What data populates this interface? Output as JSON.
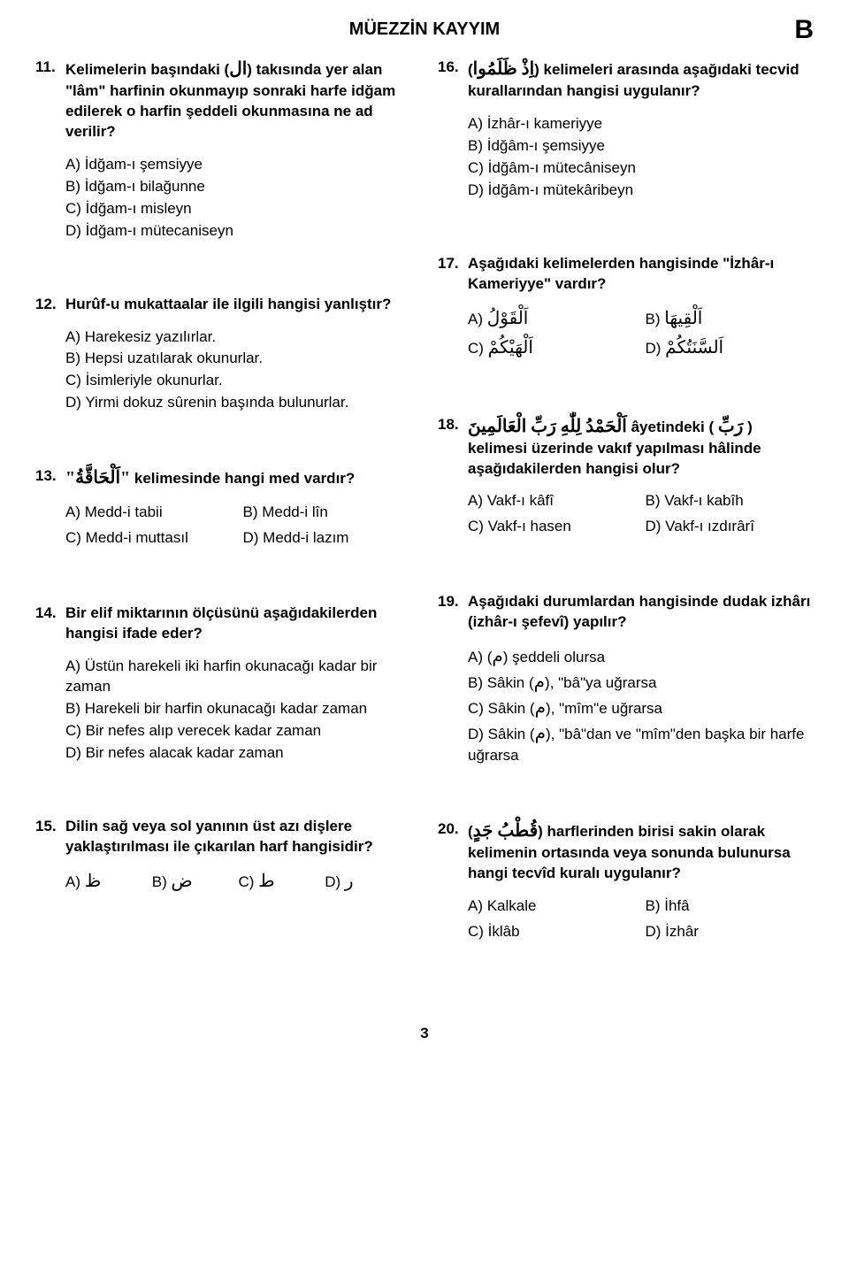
{
  "page": {
    "title": "MÜEZZİN KAYYIM",
    "booklet": "B",
    "page_number": "3"
  },
  "q11": {
    "num": "11.",
    "pre": "Kelimelerin başındaki (",
    "ar": "ال",
    "post": ") takısında yer alan \"lâm\" harfinin okunmayıp sonraki harfe idğam edilerek o harfin şeddeli okunmasına ne ad verilir?",
    "a": "A) İdğam-ı şemsiyye",
    "b": "B) İdğam-ı bilağunne",
    "c": "C) İdğam-ı misleyn",
    "d": "D) İdğam-ı mütecaniseyn"
  },
  "q12": {
    "num": "12.",
    "text": "Hurûf-u mukattaalar ile ilgili hangisi yanlıştır?",
    "a": "A) Harekesiz yazılırlar.",
    "b": "B) Hepsi uzatılarak okunurlar.",
    "c": "C) İsimleriyle okunurlar.",
    "d": "D) Yirmi dokuz sûrenin başında bulunurlar."
  },
  "q13": {
    "num": "13.",
    "ar": "\"اَلْحَاقَّةُ\"",
    "text": " kelimesinde hangi med vardır?",
    "a": "A) Medd-i tabii",
    "b": "B) Medd-i lîn",
    "c": "C) Medd-i muttasıl",
    "d": "D) Medd-i lazım"
  },
  "q14": {
    "num": "14.",
    "text": "Bir elif miktarının ölçüsünü aşağıdakilerden hangisi ifade eder?",
    "a": "A) Üstün harekeli iki harfin okunacağı kadar bir zaman",
    "b": "B) Harekeli bir harfin okunacağı kadar zaman",
    "c": "C) Bir nefes alıp verecek kadar zaman",
    "d": "D) Bir nefes alacak kadar zaman"
  },
  "q15": {
    "num": "15.",
    "text": "Dilin sağ veya sol yanının üst azı dişlere yaklaştırılması ile çıkarılan harf hangisidir?",
    "a_pre": "A) ",
    "a_ar": "ظ",
    "b_pre": "B) ",
    "b_ar": "ض",
    "c_pre": "C) ",
    "c_ar": "ط",
    "d_pre": "D) ",
    "d_ar": "ر"
  },
  "q16": {
    "num": "16.",
    "pre": "(",
    "ar": "اِذْ ظَلَمُوا",
    "post": ") kelimeleri arasında aşağıdaki tecvid kurallarından hangisi uygulanır?",
    "a": "A) İzhâr-ı kameriyye",
    "b": "B) İdğâm-ı şemsiyye",
    "c": "C) İdğâm-ı mütecâniseyn",
    "d": "D) İdğâm-ı mütekâribeyn"
  },
  "q17": {
    "num": "17.",
    "text": "Aşağıdaki kelimelerden hangisinde \"İzhâr-ı Kameriyye\" vardır?",
    "a_pre": "A) ",
    "a_ar": "اَلْقَوْلُ",
    "b_pre": "B) ",
    "b_ar": "اَلْقِيهَا",
    "c_pre": "C) ",
    "c_ar": "اَلْهَيْكُمْ",
    "d_pre": "D) ",
    "d_ar": "اَلسَّنَتُكُمْ"
  },
  "q18": {
    "num": "18.",
    "ar1": "اَلْحَمْدُ لِلّٰهِ رَبِّ الْعَالَمِينَ",
    "mid1": " âyetindeki ( ",
    "ar2": "رَبِّ",
    "mid2": " ) kelimesi üzerinde vakıf yapılması hâlinde aşağıdakilerden hangisi olur?",
    "a": "A) Vakf-ı kâfî",
    "b": "B) Vakf-ı kabîh",
    "c": "C) Vakf-ı hasen",
    "d": "D) Vakf-ı ızdırârî"
  },
  "q19": {
    "num": "19.",
    "text": "Aşağıdaki durumlardan hangisinde dudak izhârı (izhâr-ı şefevî) yapılır?",
    "a_pre": "A) (",
    "a_ar": "م",
    "a_post": ") şeddeli olursa",
    "b_pre": "B) Sâkin (",
    "b_ar": "م",
    "b_post": "), \"bâ\"ya uğrarsa",
    "c_pre": "C) Sâkin (",
    "c_ar": "م",
    "c_post": "), \"mîm\"e uğrarsa",
    "d_pre": "D) Sâkin (",
    "d_ar": "م",
    "d_post": "), \"bâ\"dan ve \"mîm\"den başka bir harfe uğrarsa"
  },
  "q20": {
    "num": "20.",
    "pre": "(",
    "ar": "قُطْبُ جَدٍ",
    "post": ") harflerinden birisi sakin olarak kelimenin ortasında veya sonunda bulunursa hangi tecvîd kuralı uygulanır?",
    "a": "A) Kalkale",
    "b": "B) İhfâ",
    "c": "C) İklâb",
    "d": "D) İzhâr"
  }
}
